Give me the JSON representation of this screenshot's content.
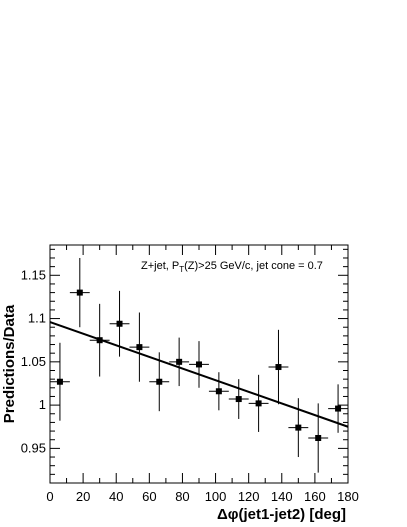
{
  "chart_data": {
    "type": "scatter",
    "title": "",
    "annotation": {
      "prefix": "Z+jet, P",
      "sub": "T",
      "suffix": "(Z)>25 GeV/c, jet cone = 0.7"
    },
    "xlabel": "Δφ(jet1-jet2) [deg]",
    "ylabel": "Predictions/Data",
    "xlim": [
      0,
      180
    ],
    "ylim": [
      0.91,
      1.185
    ],
    "xticks": [
      0,
      20,
      40,
      60,
      80,
      100,
      120,
      140,
      160,
      180
    ],
    "yticks": [
      0.95,
      1,
      1.05,
      1.1,
      1.15
    ],
    "ytick_labels": [
      "0.95",
      "1",
      "1.05",
      "1.1",
      "1.15"
    ],
    "grid": false,
    "series": [
      {
        "x": [
          6,
          18,
          30,
          42,
          54,
          66,
          78,
          90,
          102,
          114,
          126,
          138,
          150,
          162,
          174
        ],
        "y": [
          1.027,
          1.13,
          1.075,
          1.094,
          1.067,
          1.027,
          1.05,
          1.047,
          1.016,
          1.007,
          1.002,
          1.044,
          0.974,
          0.962,
          0.996
        ],
        "x_half_width": 6,
        "y_err": [
          0.045,
          0.04,
          0.042,
          0.038,
          0.04,
          0.034,
          0.028,
          0.027,
          0.022,
          0.023,
          0.033,
          0.043,
          0.034,
          0.04,
          0.028
        ]
      }
    ],
    "fit_line": {
      "x": [
        0,
        180
      ],
      "y": [
        1.096,
        0.975
      ]
    }
  }
}
